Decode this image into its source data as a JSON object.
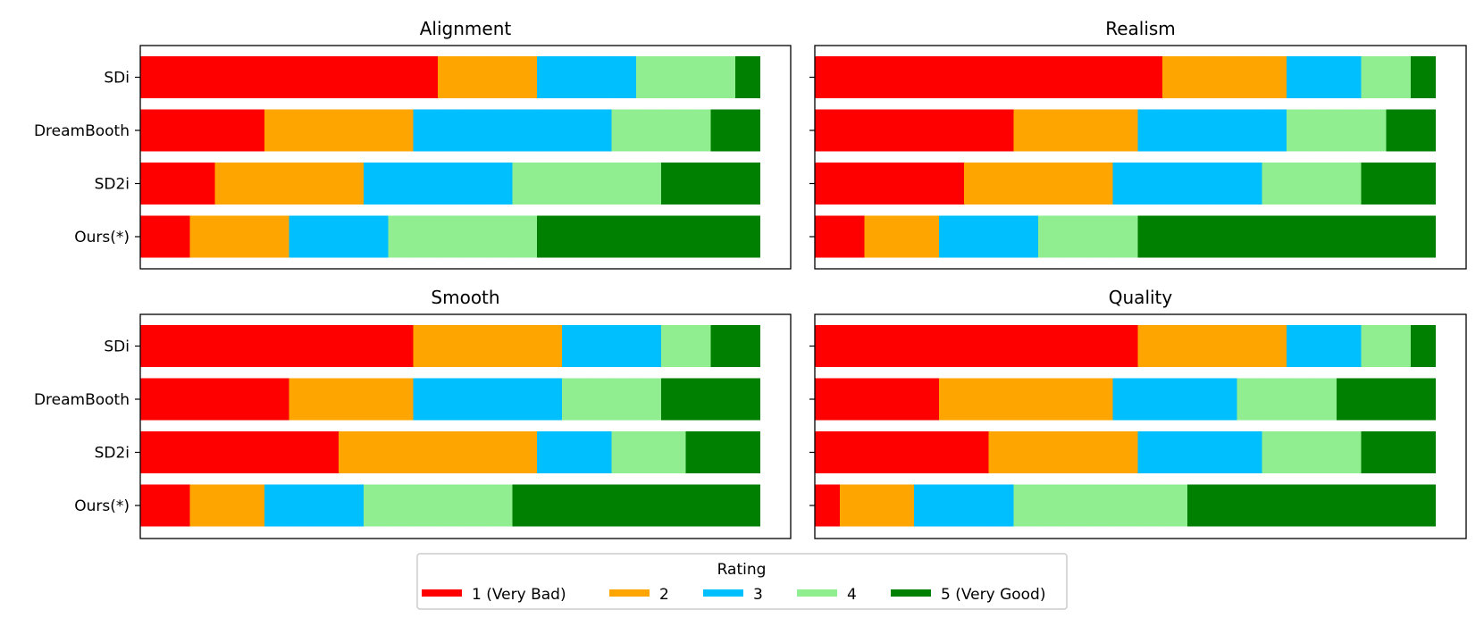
{
  "chart_data": [
    {
      "type": "bar",
      "orientation": "horizontal-stacked",
      "title": "Alignment",
      "categories": [
        "SDi",
        "DreamBooth",
        "SD2i",
        "Ours(*)"
      ],
      "xlim": [
        0,
        25
      ],
      "series": [
        {
          "name": "1 (Very Bad)",
          "values": [
            12,
            5,
            3,
            2
          ]
        },
        {
          "name": "2",
          "values": [
            4,
            6,
            6,
            4
          ]
        },
        {
          "name": "3",
          "values": [
            4,
            8,
            6,
            4
          ]
        },
        {
          "name": "4",
          "values": [
            4,
            4,
            6,
            6
          ]
        },
        {
          "name": "5 (Very Good)",
          "values": [
            1,
            2,
            4,
            9
          ]
        }
      ]
    },
    {
      "type": "bar",
      "orientation": "horizontal-stacked",
      "title": "Realism",
      "categories": [
        "SDi",
        "DreamBooth",
        "SD2i",
        "Ours(*)"
      ],
      "xlim": [
        0,
        25
      ],
      "series": [
        {
          "name": "1 (Very Bad)",
          "values": [
            14,
            8,
            6,
            2
          ]
        },
        {
          "name": "2",
          "values": [
            5,
            5,
            6,
            3
          ]
        },
        {
          "name": "3",
          "values": [
            3,
            6,
            6,
            4
          ]
        },
        {
          "name": "4",
          "values": [
            2,
            4,
            4,
            4
          ]
        },
        {
          "name": "5 (Very Good)",
          "values": [
            1,
            2,
            3,
            12
          ]
        }
      ]
    },
    {
      "type": "bar",
      "orientation": "horizontal-stacked",
      "title": "Smooth",
      "categories": [
        "SDi",
        "DreamBooth",
        "SD2i",
        "Ours(*)"
      ],
      "xlim": [
        0,
        25
      ],
      "series": [
        {
          "name": "1 (Very Bad)",
          "values": [
            11,
            6,
            8,
            2
          ]
        },
        {
          "name": "2",
          "values": [
            6,
            5,
            8,
            3
          ]
        },
        {
          "name": "3",
          "values": [
            4,
            6,
            3,
            4
          ]
        },
        {
          "name": "4",
          "values": [
            2,
            4,
            3,
            6
          ]
        },
        {
          "name": "5 (Very Good)",
          "values": [
            2,
            4,
            3,
            10
          ]
        }
      ]
    },
    {
      "type": "bar",
      "orientation": "horizontal-stacked",
      "title": "Quality",
      "categories": [
        "SDi",
        "DreamBooth",
        "SD2i",
        "Ours(*)"
      ],
      "xlim": [
        0,
        25
      ],
      "series": [
        {
          "name": "1 (Very Bad)",
          "values": [
            13,
            5,
            7,
            1
          ]
        },
        {
          "name": "2",
          "values": [
            6,
            7,
            6,
            3
          ]
        },
        {
          "name": "3",
          "values": [
            3,
            5,
            5,
            4
          ]
        },
        {
          "name": "4",
          "values": [
            2,
            4,
            4,
            7
          ]
        },
        {
          "name": "5 (Very Good)",
          "values": [
            1,
            4,
            3,
            10
          ]
        }
      ]
    }
  ],
  "legend": {
    "title": "Rating",
    "placement": "bottom-center",
    "entries": [
      "1 (Very Bad)",
      "2",
      "3",
      "4",
      "5 (Very Good)"
    ]
  },
  "colors": {
    "1 (Very Bad)": "#ff0000",
    "2": "#ffa500",
    "3": "#00bfff",
    "4": "#90ee90",
    "5 (Very Good)": "#008000"
  }
}
